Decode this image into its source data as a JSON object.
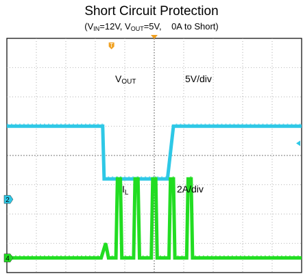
{
  "chart_data": {
    "type": "line",
    "title": "Short Circuit Protection",
    "subtitle": {
      "v_in_sym": "V",
      "v_in_sub": "IN",
      "v_in_val": "=12V, ",
      "v_out_sym": "V",
      "v_out_sub": "OUT",
      "v_out_val": "=5V,",
      "load": "0A to Short",
      "open": "(",
      "close": ")"
    },
    "grid": true,
    "x_divisions": 10,
    "y_divisions": 8,
    "series": [
      {
        "channel": "2",
        "color": "#2ec8e6",
        "label_sym": "V",
        "label_sub": "OUT",
        "scale": "5V/div",
        "ground_div": 2.5,
        "points_div": [
          [
            0,
            5.0
          ],
          [
            3.25,
            5.0
          ],
          [
            3.3,
            3.2
          ],
          [
            5.45,
            3.2
          ],
          [
            5.65,
            5.0
          ],
          [
            10,
            5.0
          ]
        ]
      },
      {
        "channel": "4",
        "color": "#22dd22",
        "label_sym": "I",
        "label_sub": "L",
        "scale": "2A/div",
        "ground_div": 0.5,
        "points_div": [
          [
            0,
            0.5
          ],
          [
            3.2,
            0.5
          ],
          [
            3.35,
            1.0
          ],
          [
            3.45,
            0.5
          ],
          [
            3.7,
            0.5
          ],
          [
            3.75,
            3.2
          ],
          [
            3.85,
            3.2
          ],
          [
            3.9,
            0.5
          ],
          [
            4.3,
            0.5
          ],
          [
            4.35,
            3.2
          ],
          [
            4.45,
            3.2
          ],
          [
            4.5,
            0.5
          ],
          [
            4.9,
            0.5
          ],
          [
            4.95,
            3.2
          ],
          [
            5.05,
            3.2
          ],
          [
            5.1,
            0.5
          ],
          [
            5.5,
            0.5
          ],
          [
            5.55,
            3.2
          ],
          [
            5.65,
            3.2
          ],
          [
            5.7,
            0.5
          ],
          [
            6.1,
            0.5
          ],
          [
            6.15,
            3.2
          ],
          [
            6.25,
            3.2
          ],
          [
            6.3,
            0.5
          ],
          [
            10,
            0.5
          ]
        ]
      }
    ],
    "markers": {
      "trigger": "T",
      "ch2": "2",
      "ch4": "4"
    }
  }
}
